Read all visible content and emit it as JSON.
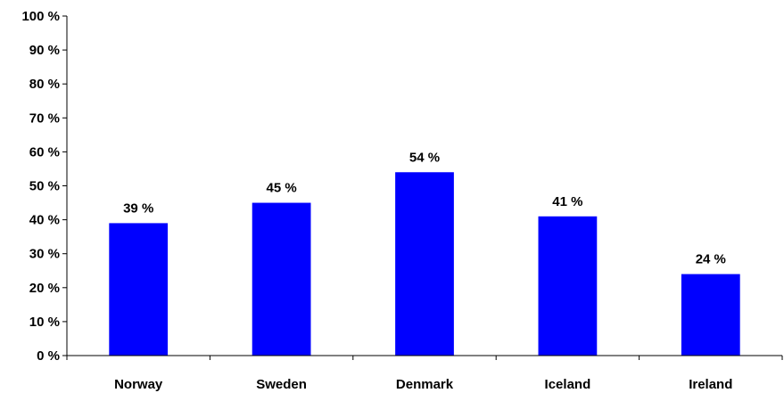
{
  "chart_data": {
    "type": "bar",
    "categories": [
      "Norway",
      "Sweden",
      "Denmark",
      "Iceland",
      "Ireland"
    ],
    "values": [
      39,
      45,
      54,
      41,
      24
    ],
    "data_labels": [
      "39 %",
      "45 %",
      "54 %",
      "41 %",
      "24 %"
    ],
    "title": "",
    "xlabel": "",
    "ylabel": "",
    "ylim": [
      0,
      100
    ],
    "yticks": [
      0,
      10,
      20,
      30,
      40,
      50,
      60,
      70,
      80,
      90,
      100
    ],
    "ytick_labels": [
      "0 %",
      "10 %",
      "20 %",
      "30 %",
      "40 %",
      "50 %",
      "60 %",
      "70 %",
      "80 %",
      "90 %",
      "100 %"
    ],
    "grid": false,
    "legend": "none",
    "bar_color": "#0000FF",
    "axis_color": "#000000"
  }
}
